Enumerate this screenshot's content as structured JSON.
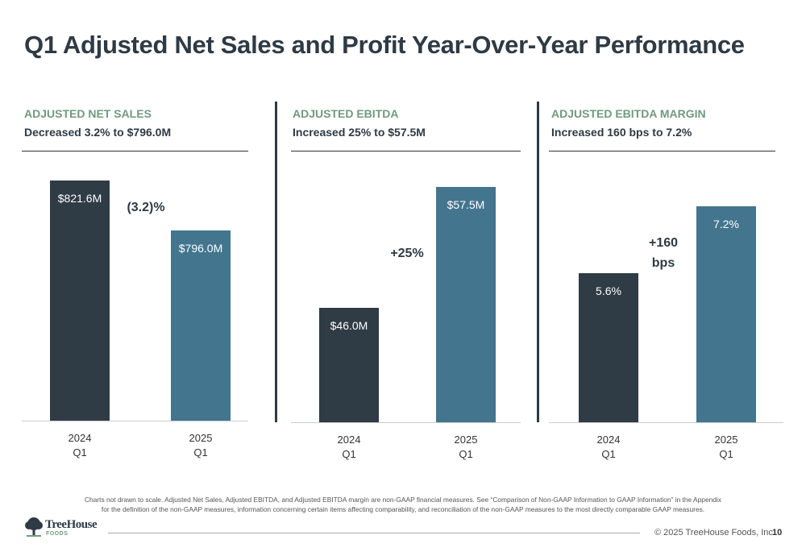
{
  "title": "Q1 Adjusted Net Sales and Profit Year-Over-Year Performance",
  "panels": [
    {
      "category": "ADJUSTED NET SALES",
      "subtitle": "Decreased 3.2% to $796.0M"
    },
    {
      "category": "ADJUSTED EBITDA",
      "subtitle": "Increased 25% to $57.5M"
    },
    {
      "category": "ADJUSTED EBITDA MARGIN",
      "subtitle": "Increased 160 bps to 7.2%"
    }
  ],
  "chart_data": [
    {
      "type": "bar",
      "title": "ADJUSTED NET SALES",
      "categories": [
        [
          "2024",
          "Q1"
        ],
        [
          "2025",
          "Q1"
        ]
      ],
      "values": [
        821.6,
        796.0
      ],
      "data_labels": [
        "$821.6M",
        "$796.0M"
      ],
      "annotation": [
        "(3.2)%"
      ],
      "colors": [
        "#2f3b45",
        "#43758e"
      ],
      "note": "Charts not drawn to scale"
    },
    {
      "type": "bar",
      "title": "ADJUSTED EBITDA",
      "categories": [
        [
          "2024",
          "Q1"
        ],
        [
          "2025",
          "Q1"
        ]
      ],
      "values": [
        46.0,
        57.5
      ],
      "data_labels": [
        "$46.0M",
        "$57.5M"
      ],
      "annotation": [
        "+25%"
      ],
      "colors": [
        "#2f3b45",
        "#43758e"
      ]
    },
    {
      "type": "bar",
      "title": "ADJUSTED EBITDA MARGIN",
      "categories": [
        [
          "2024",
          "Q1"
        ],
        [
          "2025",
          "Q1"
        ]
      ],
      "values": [
        5.6,
        7.2
      ],
      "data_labels": [
        "5.6%",
        "7.2%"
      ],
      "annotation": [
        "+160",
        "bps"
      ],
      "colors": [
        "#2f3b45",
        "#43758e"
      ]
    }
  ],
  "footnote": [
    "Charts not drawn to scale. Adjusted Net Sales, Adjusted EBITDA, and Adjusted EBITDA margin are non-GAAP financial measures. See “Comparison of Non-GAAP Information to GAAP Information” in the Appendix",
    "for the definition of the non-GAAP measures, information concerning certain items affecting comparability, and reconciliation of the non-GAAP measures to the most directly comparable GAAP measures."
  ],
  "footer": {
    "logo_name": "TreeHouse",
    "logo_sub": "FOODS",
    "copyright": "© 2025 TreeHouse Foods, Inc.",
    "page": "10"
  }
}
